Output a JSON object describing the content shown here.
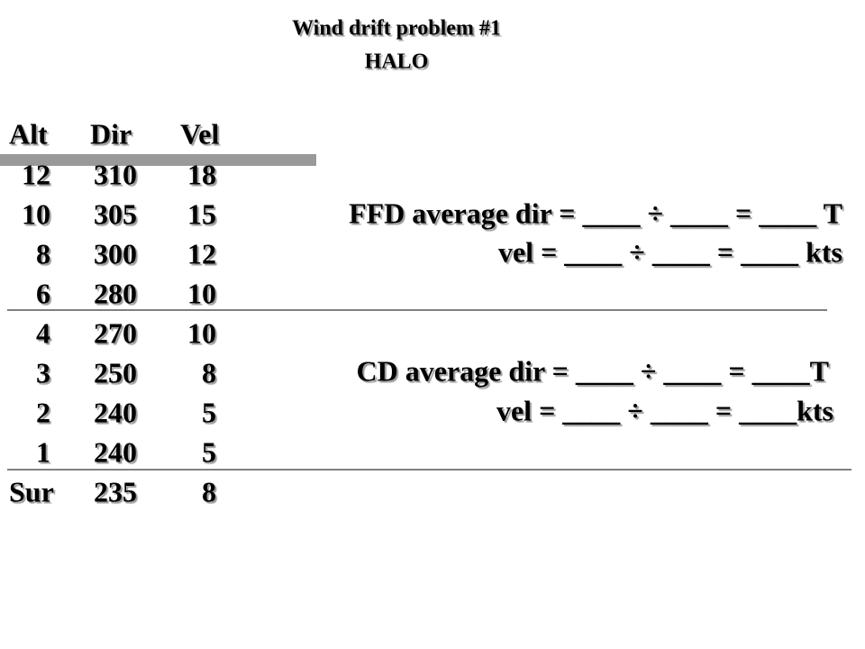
{
  "header": {
    "title": "Wind drift problem #1",
    "subtitle": "HALO"
  },
  "table": {
    "columns": [
      "Alt",
      "Dir",
      "Vel"
    ],
    "rows": [
      [
        "12",
        "310",
        "18"
      ],
      [
        "10",
        "305",
        "15"
      ],
      [
        "8",
        "300",
        "12"
      ],
      [
        "6",
        "280",
        "10"
      ],
      [
        "4",
        "270",
        "10"
      ],
      [
        "3",
        "250",
        "8"
      ],
      [
        "2",
        "240",
        "5"
      ],
      [
        "1",
        "240",
        "5"
      ],
      [
        "Sur",
        "235",
        "8"
      ]
    ]
  },
  "formulas": [
    "FFD average dir = ____ ÷ ____ = ____ T",
    "vel = ____ ÷ ____ = ____ kts",
    "CD average dir = ____ ÷ ____ = ____T",
    "vel = ____ ÷ ____ = ____kts"
  ]
}
